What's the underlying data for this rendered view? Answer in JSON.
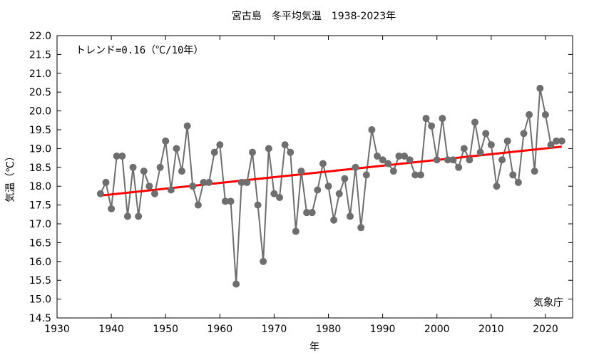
{
  "chart_data": {
    "type": "line",
    "title": "宮古島　冬平均気温　1938-2023年",
    "xlabel": "年",
    "ylabel": "気温（℃）",
    "xlim": [
      1930,
      2025
    ],
    "ylim": [
      14.5,
      22.0
    ],
    "xticks": [
      1930,
      1940,
      1950,
      1960,
      1970,
      1980,
      1990,
      2000,
      2010,
      2020
    ],
    "yticks": [
      "14.5",
      "15.0",
      "15.5",
      "16.0",
      "16.5",
      "17.0",
      "17.5",
      "18.0",
      "18.5",
      "19.0",
      "19.5",
      "20.0",
      "20.5",
      "21.0",
      "21.5",
      "22.0"
    ],
    "annotation": "トレンド=0.16（℃/10年）",
    "credit": "気象庁",
    "grid": false,
    "series": [
      {
        "color": "#6e6e6e",
        "x": [
          1938,
          1939,
          1940,
          1941,
          1942,
          1943,
          1944,
          1945,
          1946,
          1947,
          1948,
          1949,
          1950,
          1951,
          1952,
          1953,
          1954,
          1955,
          1956,
          1957,
          1958,
          1959,
          1960,
          1961,
          1962,
          1963,
          1964,
          1965,
          1966,
          1967,
          1968,
          1969,
          1970,
          1971,
          1972,
          1973,
          1974,
          1975,
          1976,
          1977,
          1978,
          1979,
          1980,
          1981,
          1982,
          1983,
          1984,
          1985,
          1986,
          1987,
          1988,
          1989,
          1990,
          1991,
          1992,
          1993,
          1994,
          1995,
          1996,
          1997,
          1998,
          1999,
          2000,
          2001,
          2002,
          2003,
          2004,
          2005,
          2006,
          2007,
          2008,
          2009,
          2010,
          2011,
          2012,
          2013,
          2014,
          2015,
          2016,
          2017,
          2018,
          2019,
          2020,
          2021,
          2022,
          2023
        ],
        "values": [
          17.8,
          18.1,
          17.4,
          18.8,
          18.8,
          17.2,
          18.5,
          17.2,
          18.4,
          18.0,
          17.8,
          18.5,
          19.2,
          17.9,
          19.0,
          18.4,
          19.6,
          18.0,
          17.5,
          18.1,
          18.1,
          18.9,
          19.1,
          17.6,
          17.6,
          15.4,
          18.1,
          18.1,
          18.9,
          17.5,
          16.0,
          19.0,
          17.8,
          17.7,
          19.1,
          18.9,
          16.8,
          18.4,
          17.3,
          17.3,
          17.9,
          18.6,
          18.0,
          17.1,
          17.8,
          18.2,
          17.2,
          18.5,
          16.9,
          18.3,
          19.5,
          18.8,
          18.7,
          18.6,
          18.4,
          18.8,
          18.8,
          18.7,
          18.3,
          18.3,
          19.8,
          19.6,
          18.7,
          19.8,
          18.7,
          18.7,
          18.5,
          19.0,
          18.7,
          19.7,
          18.9,
          19.4,
          19.1,
          18.0,
          18.7,
          19.2,
          18.3,
          18.1,
          19.4,
          19.9,
          18.4,
          20.6,
          19.9,
          19.1,
          19.2,
          19.2
        ]
      },
      {
        "name": "trend",
        "type": "line",
        "color": "#ff0000",
        "x": [
          1938,
          2023
        ],
        "values": [
          17.75,
          19.05
        ]
      }
    ]
  }
}
